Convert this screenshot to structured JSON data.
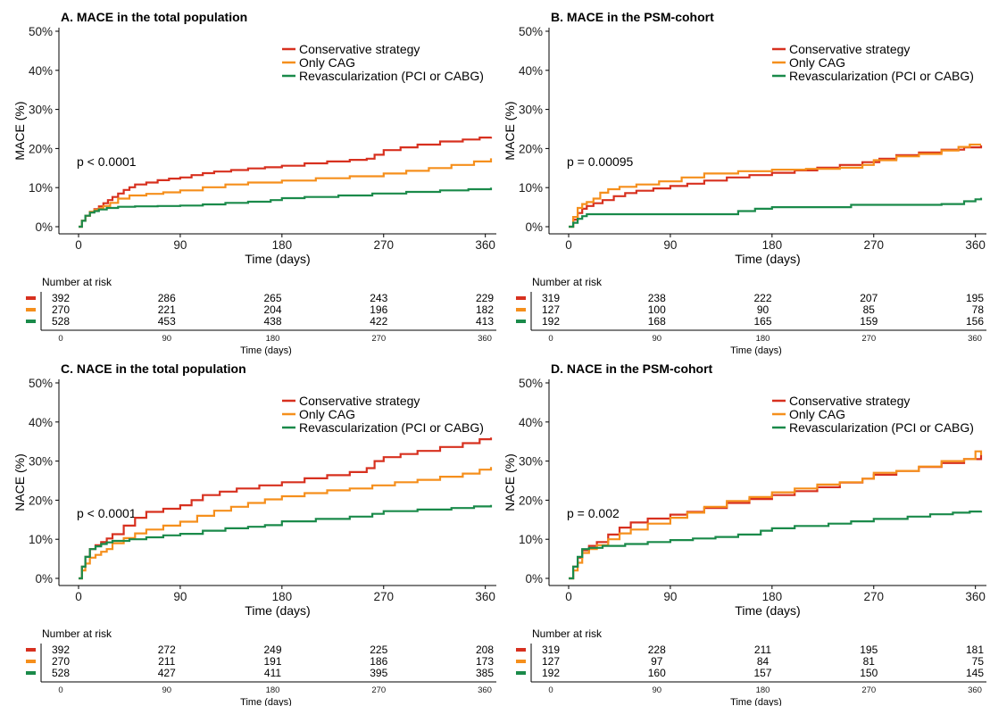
{
  "colors": {
    "conservative": "#d7301f",
    "only_cag": "#f58f1c",
    "revascularization": "#1a8a4a"
  },
  "legend_labels": [
    "Conservative strategy",
    "Only CAG",
    "Revascularization (PCI or CABG)"
  ],
  "risk_table_title": "Number at risk",
  "chart_data": [
    {
      "type": "line",
      "title": "A. MACE in the total population",
      "xlabel": "Time (days)",
      "ylabel": "MACE (%)",
      "xlim": [
        0,
        365
      ],
      "ylim": [
        0,
        50
      ],
      "xticks": [
        0,
        90,
        180,
        270,
        360
      ],
      "yticks": [
        "0%",
        "10%",
        "20%",
        "30%",
        "40%",
        "50%"
      ],
      "legend": "top-right",
      "annotation": "p < 0.0001",
      "series": [
        {
          "name": "Conservative strategy",
          "x": [
            0,
            3,
            6,
            10,
            14,
            18,
            22,
            26,
            30,
            35,
            40,
            45,
            50,
            60,
            70,
            80,
            90,
            100,
            110,
            120,
            135,
            150,
            165,
            180,
            200,
            220,
            240,
            255,
            262,
            270,
            285,
            300,
            320,
            340,
            355,
            365
          ],
          "y": [
            0,
            1.5,
            2.8,
            3.8,
            4.5,
            5.2,
            6,
            6.8,
            7.6,
            8.5,
            9.4,
            10.1,
            10.8,
            11.3,
            11.9,
            12.3,
            12.6,
            13.2,
            13.7,
            14.1,
            14.5,
            14.9,
            15.2,
            15.6,
            16.2,
            16.7,
            17.1,
            17.4,
            18.4,
            19.6,
            20.3,
            21,
            21.8,
            22.3,
            22.8,
            23
          ]
        },
        {
          "name": "Only CAG",
          "x": [
            0,
            3,
            6,
            10,
            14,
            18,
            22,
            28,
            35,
            45,
            60,
            75,
            90,
            110,
            130,
            150,
            180,
            210,
            240,
            270,
            290,
            310,
            330,
            350,
            365
          ],
          "y": [
            0,
            1.5,
            2.8,
            3.8,
            4.3,
            4.7,
            5.3,
            6.1,
            7.2,
            8,
            8.4,
            8.8,
            9.3,
            10.1,
            10.8,
            11.3,
            11.8,
            12.4,
            12.9,
            13.6,
            14.3,
            15,
            15.8,
            16.7,
            17.5
          ]
        },
        {
          "name": "Revascularization (PCI or CABG)",
          "x": [
            0,
            3,
            6,
            10,
            14,
            18,
            25,
            35,
            50,
            70,
            90,
            110,
            130,
            150,
            170,
            180,
            200,
            230,
            260,
            290,
            320,
            345,
            365
          ],
          "y": [
            0,
            1.5,
            2.8,
            3.6,
            4,
            4.4,
            4.8,
            5.1,
            5.2,
            5.3,
            5.4,
            5.7,
            6.1,
            6.4,
            6.8,
            7.3,
            7.6,
            8,
            8.5,
            8.9,
            9.3,
            9.6,
            10
          ]
        }
      ],
      "risk_table": {
        "times": [
          0,
          90,
          180,
          270,
          360
        ],
        "rows": [
          [
            392,
            286,
            265,
            243,
            229
          ],
          [
            270,
            221,
            204,
            196,
            182
          ],
          [
            528,
            453,
            438,
            422,
            413
          ]
        ],
        "xlabel": "Time (days)"
      }
    },
    {
      "type": "line",
      "title": "B. MACE in the PSM-cohort",
      "xlabel": "Time (days)",
      "ylabel": "MACE (%)",
      "xlim": [
        0,
        365
      ],
      "ylim": [
        0,
        50
      ],
      "xticks": [
        0,
        90,
        180,
        270,
        360
      ],
      "yticks": [
        "0%",
        "10%",
        "20%",
        "30%",
        "40%",
        "50%"
      ],
      "legend": "top-right",
      "annotation": "p = 0.00095",
      "series": [
        {
          "name": "Conservative strategy",
          "x": [
            0,
            4,
            8,
            12,
            16,
            22,
            30,
            40,
            50,
            60,
            75,
            90,
            105,
            120,
            140,
            160,
            180,
            200,
            220,
            240,
            260,
            275,
            290,
            310,
            330,
            350,
            365
          ],
          "y": [
            0,
            1.8,
            3.5,
            4.6,
            5.3,
            6,
            6.8,
            7.8,
            8.6,
            9.2,
            9.8,
            10.4,
            11,
            11.8,
            12.6,
            13.2,
            13.8,
            14.4,
            15.1,
            15.8,
            16.5,
            17.4,
            18.3,
            19,
            19.7,
            20.3,
            20.8
          ]
        },
        {
          "name": "Only CAG",
          "x": [
            0,
            4,
            8,
            12,
            16,
            22,
            28,
            35,
            45,
            60,
            80,
            100,
            120,
            150,
            180,
            210,
            240,
            260,
            270,
            290,
            310,
            330,
            345,
            355,
            365
          ],
          "y": [
            0,
            2.5,
            4.8,
            5.8,
            6.3,
            7.2,
            8.7,
            9.6,
            10.2,
            10.8,
            11.6,
            12.6,
            13.6,
            14.2,
            14.6,
            14.8,
            15.1,
            15.8,
            17,
            18,
            18.6,
            19.5,
            20.4,
            21,
            21
          ]
        },
        {
          "name": "Revascularization (PCI or CABG)",
          "x": [
            0,
            4,
            8,
            12,
            16,
            25,
            50,
            80,
            110,
            140,
            150,
            165,
            180,
            210,
            240,
            250,
            270,
            300,
            330,
            350,
            360,
            365
          ],
          "y": [
            0,
            1,
            2,
            2.7,
            3.2,
            3.2,
            3.2,
            3.2,
            3.2,
            3.2,
            4,
            4.6,
            5,
            5,
            5,
            5.6,
            5.6,
            5.6,
            5.8,
            6.5,
            7,
            7.4
          ]
        }
      ],
      "risk_table": {
        "times": [
          0,
          90,
          180,
          270,
          360
        ],
        "rows": [
          [
            319,
            238,
            222,
            207,
            195
          ],
          [
            127,
            100,
            90,
            85,
            78
          ],
          [
            192,
            168,
            165,
            159,
            156
          ]
        ],
        "xlabel": "Time (days)"
      }
    },
    {
      "type": "line",
      "title": "C. NACE in the total population",
      "xlabel": "Time (days)",
      "ylabel": "NACE (%)",
      "xlim": [
        0,
        365
      ],
      "ylim": [
        0,
        50
      ],
      "xticks": [
        0,
        90,
        180,
        270,
        360
      ],
      "yticks": [
        "0%",
        "10%",
        "20%",
        "30%",
        "40%",
        "50%"
      ],
      "legend": "top-right",
      "annotation": "p < 0.0001",
      "series": [
        {
          "name": "Conservative strategy",
          "x": [
            0,
            3,
            6,
            10,
            15,
            20,
            25,
            30,
            40,
            50,
            60,
            75,
            90,
            100,
            110,
            125,
            140,
            160,
            180,
            200,
            220,
            240,
            255,
            262,
            270,
            285,
            300,
            320,
            340,
            355,
            365
          ],
          "y": [
            0,
            3,
            5.5,
            7.5,
            8.5,
            9.3,
            10.2,
            11.3,
            13.5,
            15.5,
            17,
            17.8,
            18.7,
            20,
            21.3,
            22.2,
            23,
            23.8,
            24.6,
            25.6,
            26.4,
            27.2,
            28.2,
            30,
            31,
            31.8,
            32.6,
            33.6,
            34.6,
            35.6,
            36
          ]
        },
        {
          "name": "Only CAG",
          "x": [
            0,
            3,
            6,
            10,
            15,
            20,
            25,
            30,
            40,
            50,
            60,
            75,
            90,
            105,
            120,
            135,
            150,
            165,
            180,
            200,
            220,
            240,
            260,
            280,
            300,
            320,
            340,
            355,
            365
          ],
          "y": [
            0,
            2,
            3.8,
            5.3,
            6,
            6.8,
            7.5,
            9,
            10.3,
            11.5,
            12.5,
            13.5,
            14.5,
            16,
            17.3,
            18.3,
            19.3,
            20.2,
            21,
            21.8,
            22.5,
            23,
            23.8,
            24.6,
            25.2,
            26,
            26.8,
            27.8,
            28.5
          ]
        },
        {
          "name": "Revascularization (PCI or CABG)",
          "x": [
            0,
            3,
            6,
            10,
            15,
            20,
            25,
            30,
            45,
            60,
            75,
            90,
            110,
            130,
            150,
            165,
            180,
            210,
            240,
            260,
            270,
            300,
            330,
            350,
            365
          ],
          "y": [
            0,
            3,
            5.5,
            7.5,
            8.2,
            8.8,
            9.2,
            9.6,
            10,
            10.5,
            11,
            11.4,
            12.2,
            12.8,
            13.2,
            13.6,
            14.6,
            15.2,
            15.8,
            16.5,
            17.2,
            17.6,
            18,
            18.4,
            18.8
          ]
        }
      ],
      "risk_table": {
        "times": [
          0,
          90,
          180,
          270,
          360
        ],
        "rows": [
          [
            392,
            272,
            249,
            225,
            208
          ],
          [
            270,
            211,
            191,
            186,
            173
          ],
          [
            528,
            427,
            411,
            395,
            385
          ]
        ],
        "xlabel": "Time (days)"
      }
    },
    {
      "type": "line",
      "title": "D. NACE in the PSM-cohort",
      "xlabel": "Time (days)",
      "ylabel": "NACE (%)",
      "xlim": [
        0,
        365
      ],
      "ylim": [
        0,
        50
      ],
      "xticks": [
        0,
        90,
        180,
        270,
        360
      ],
      "yticks": [
        "0%",
        "10%",
        "20%",
        "30%",
        "40%",
        "50%"
      ],
      "legend": "top-right",
      "annotation": "p = 0.002",
      "series": [
        {
          "name": "Conservative strategy",
          "x": [
            0,
            4,
            8,
            12,
            18,
            25,
            35,
            45,
            55,
            70,
            90,
            105,
            120,
            140,
            160,
            180,
            200,
            220,
            240,
            260,
            270,
            290,
            310,
            330,
            350,
            365
          ],
          "y": [
            0,
            3,
            5.3,
            7.2,
            8.3,
            9.3,
            11.2,
            13,
            14.3,
            15.3,
            16.3,
            17,
            18,
            19.3,
            20.3,
            21.3,
            22.3,
            23.3,
            24.5,
            25.5,
            26.5,
            27.5,
            28.5,
            29.5,
            30.5,
            31.5
          ]
        },
        {
          "name": "Only CAG",
          "x": [
            0,
            4,
            8,
            12,
            18,
            25,
            35,
            45,
            55,
            70,
            90,
            105,
            120,
            140,
            160,
            180,
            200,
            220,
            240,
            260,
            270,
            290,
            310,
            330,
            350,
            360,
            365
          ],
          "y": [
            0,
            2,
            4,
            6.5,
            7.5,
            8.5,
            10,
            11.5,
            12.5,
            14,
            15.5,
            16.8,
            18.3,
            19.8,
            20.8,
            22,
            23,
            24,
            24.6,
            25.5,
            27,
            27.5,
            28.6,
            30,
            30.5,
            32.5,
            31.5
          ]
        },
        {
          "name": "Revascularization (PCI or CABG)",
          "x": [
            0,
            4,
            8,
            12,
            18,
            30,
            50,
            70,
            90,
            110,
            130,
            150,
            170,
            180,
            200,
            230,
            250,
            270,
            300,
            320,
            340,
            355,
            365
          ],
          "y": [
            0,
            3,
            5.5,
            7.5,
            7.8,
            8.3,
            8.8,
            9.3,
            9.8,
            10.2,
            10.6,
            11.2,
            12.2,
            12.8,
            13.4,
            14,
            14.6,
            15.2,
            15.8,
            16.4,
            16.8,
            17.1,
            17.3
          ]
        }
      ],
      "risk_table": {
        "times": [
          0,
          90,
          180,
          270,
          360
        ],
        "rows": [
          [
            319,
            228,
            211,
            195,
            181
          ],
          [
            127,
            97,
            84,
            81,
            75
          ],
          [
            192,
            160,
            157,
            150,
            145
          ]
        ],
        "xlabel": "Time (days)"
      }
    }
  ]
}
